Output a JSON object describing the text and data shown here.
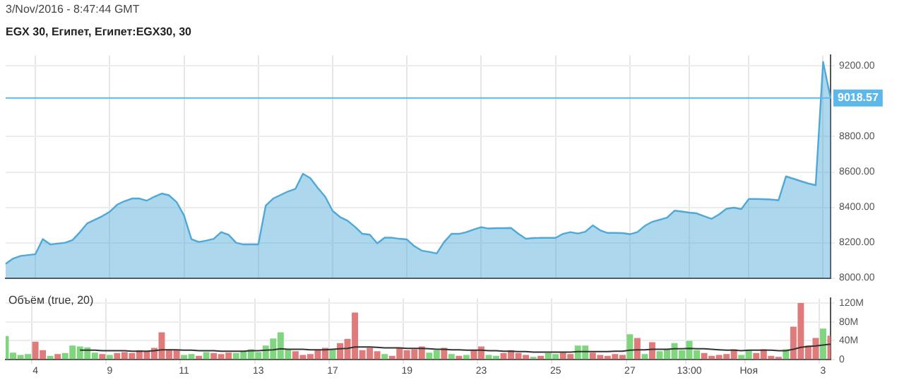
{
  "chart_data": [
    {
      "type": "area",
      "title": "EGX 30, Египет, Египет:EGX30, 30",
      "annotations": [
        "3/Nov/2016 - 8:47:44 GMT"
      ],
      "categories": [
        null,
        null,
        null,
        null,
        null,
        null,
        null,
        null,
        null,
        null,
        null,
        null,
        null,
        null,
        null,
        null,
        null,
        null,
        null,
        null,
        null,
        null,
        null,
        null,
        null,
        null,
        null,
        null,
        null,
        null,
        null,
        null,
        null,
        null,
        null,
        null,
        null,
        null,
        null,
        null,
        null,
        null,
        null,
        null,
        null,
        null,
        null,
        null,
        null,
        null,
        null,
        null,
        null,
        null,
        null,
        null,
        null,
        null,
        null,
        null,
        null,
        null,
        null,
        null,
        null,
        null,
        null,
        null,
        null,
        null,
        null,
        null,
        null,
        null,
        null,
        null,
        null,
        null,
        null,
        null,
        null,
        null,
        null,
        null,
        null,
        null,
        null,
        null,
        null,
        null,
        null,
        null,
        null,
        null,
        null,
        null,
        null,
        null,
        null,
        null,
        null,
        null,
        null,
        null,
        null,
        null,
        null,
        null,
        null,
        null,
        null,
        null
      ],
      "series": [
        {
          "color": "#4fa9d8",
          "values": [
            8080,
            8110,
            8125,
            8130,
            8135,
            8220,
            8190,
            8195,
            8200,
            8215,
            8260,
            8310,
            8330,
            8350,
            8375,
            8415,
            8435,
            8450,
            8450,
            8438,
            8460,
            8478,
            8468,
            8430,
            8355,
            8220,
            8204,
            8212,
            8222,
            8260,
            8245,
            8200,
            8190,
            8190,
            8190,
            8410,
            8450,
            8470,
            8490,
            8505,
            8590,
            8565,
            8510,
            8460,
            8380,
            8345,
            8325,
            8290,
            8250,
            8245,
            8196,
            8228,
            8228,
            8222,
            8218,
            8180,
            8155,
            8148,
            8139,
            8204,
            8250,
            8250,
            8260,
            8275,
            8288,
            8280,
            8282,
            8282,
            8283,
            8250,
            8222,
            8226,
            8227,
            8227,
            8227,
            8250,
            8260,
            8252,
            8262,
            8298,
            8270,
            8255,
            8255,
            8254,
            8248,
            8260,
            8295,
            8318,
            8330,
            8342,
            8381,
            8376,
            8370,
            8366,
            8350,
            8335,
            8360,
            8392,
            8398,
            8390,
            8447,
            8447,
            8446,
            8444,
            8440,
            8575,
            8562,
            8548,
            8535,
            8525,
            9223,
            9018.57
          ]
        }
      ],
      "ylim": [
        8000,
        9260
      ],
      "yticks": [
        {
          "value": 8000,
          "label": "8000.00"
        },
        {
          "value": 8200,
          "label": "8200.00"
        },
        {
          "value": 8400,
          "label": "8400.00"
        },
        {
          "value": 8600,
          "label": "8600.00"
        },
        {
          "value": 8800,
          "label": "8800.00"
        },
        {
          "value": 9200,
          "label": "9200.00"
        }
      ],
      "ref_lines": [
        {
          "axis": "y",
          "value": 9018.57,
          "label": "9018.57",
          "color": "#5bb8e8"
        }
      ],
      "grid": true,
      "tick_labels": "y"
    },
    {
      "type": "bar",
      "title": "Объём (true, 20)",
      "categories": [
        null,
        null,
        null,
        null,
        "4",
        null,
        null,
        null,
        null,
        null,
        null,
        null,
        null,
        null,
        "9",
        null,
        null,
        null,
        null,
        null,
        null,
        null,
        null,
        null,
        "11",
        null,
        null,
        null,
        null,
        null,
        null,
        null,
        null,
        null,
        "13",
        null,
        null,
        null,
        null,
        null,
        null,
        null,
        null,
        null,
        "17",
        null,
        null,
        null,
        null,
        null,
        null,
        null,
        null,
        null,
        "19",
        null,
        null,
        null,
        null,
        null,
        null,
        null,
        null,
        null,
        "23",
        null,
        null,
        null,
        null,
        null,
        null,
        null,
        null,
        null,
        "25",
        null,
        null,
        null,
        null,
        null,
        null,
        null,
        null,
        null,
        "27",
        null,
        null,
        null,
        null,
        null,
        null,
        null,
        "13:00",
        null,
        null,
        null,
        null,
        null,
        null,
        null,
        "Ноя",
        null,
        null,
        null,
        null,
        null,
        null,
        null,
        null,
        null,
        "3",
        null
      ],
      "series": [
        {
          "values": [
            50,
            15,
            10,
            12,
            38,
            20,
            8,
            12,
            14,
            30,
            28,
            26,
            15,
            12,
            10,
            14,
            16,
            14,
            20,
            18,
            25,
            58,
            22,
            20,
            10,
            12,
            8,
            16,
            14,
            12,
            15,
            14,
            18,
            22,
            16,
            30,
            45,
            58,
            22,
            18,
            10,
            12,
            20,
            25,
            22,
            35,
            44,
            100,
            20,
            25,
            18,
            12,
            8,
            25,
            20,
            22,
            28,
            15,
            20,
            25,
            12,
            8,
            10,
            20,
            28,
            10,
            8,
            14,
            20,
            14,
            10,
            6,
            8,
            14,
            12,
            15,
            12,
            30,
            30,
            15,
            10,
            8,
            12,
            10,
            54,
            46,
            12,
            37,
            18,
            22,
            35,
            20,
            40,
            20,
            14,
            8,
            10,
            12,
            22,
            10,
            20,
            14,
            22,
            8,
            6,
            22,
            70,
            120,
            30,
            46,
            66,
            51
          ],
          "colors": [
            "#7fd67f",
            "#7fd67f",
            "#7fd67f",
            "#7fd67f",
            "#e07b7b",
            "#e07b7b",
            "#7fd67f",
            "#e07b7b",
            "#7fd67f",
            "#7fd67f",
            "#7fd67f",
            "#7fd67f",
            "#7fd67f",
            "#e07b7b",
            "#7fd67f",
            "#e07b7b",
            "#e07b7b",
            "#e07b7b",
            "#e07b7b",
            "#e07b7b",
            "#e07b7b",
            "#e07b7b",
            "#e07b7b",
            "#e07b7b",
            "#7fd67f",
            "#7fd67f",
            "#e07b7b",
            "#7fd67f",
            "#e07b7b",
            "#e07b7b",
            "#e07b7b",
            "#7fd67f",
            "#7fd67f",
            "#7fd67f",
            "#7fd67f",
            "#7fd67f",
            "#7fd67f",
            "#7fd67f",
            "#7fd67f",
            "#e07b7b",
            "#e07b7b",
            "#e07b7b",
            "#e07b7b",
            "#e07b7b",
            "#7fd67f",
            "#e07b7b",
            "#e07b7b",
            "#e07b7b",
            "#e07b7b",
            "#e07b7b",
            "#e07b7b",
            "#7fd67f",
            "#e07b7b",
            "#e07b7b",
            "#e07b7b",
            "#e07b7b",
            "#e07b7b",
            "#7fd67f",
            "#7fd67f",
            "#e07b7b",
            "#7fd67f",
            "#e07b7b",
            "#7fd67f",
            "#e07b7b",
            "#e07b7b",
            "#7fd67f",
            "#7fd67f",
            "#e07b7b",
            "#e07b7b",
            "#e07b7b",
            "#e07b7b",
            "#7fd67f",
            "#e07b7b",
            "#7fd67f",
            "#7fd67f",
            "#e07b7b",
            "#e07b7b",
            "#7fd67f",
            "#7fd67f",
            "#e07b7b",
            "#e07b7b",
            "#e07b7b",
            "#e07b7b",
            "#e07b7b",
            "#7fd67f",
            "#e07b7b",
            "#7fd67f",
            "#e07b7b",
            "#7fd67f",
            "#7fd67f",
            "#7fd67f",
            "#7fd67f",
            "#7fd67f",
            "#7fd67f",
            "#e07b7b",
            "#e07b7b",
            "#e07b7b",
            "#e07b7b",
            "#e07b7b",
            "#7fd67f",
            "#7fd67f",
            "#e07b7b",
            "#e07b7b",
            "#e07b7b",
            "#e07b7b",
            "#7fd67f",
            "#e07b7b",
            "#e07b7b",
            "#e07b7b",
            "#e07b7b",
            "#7fd67f",
            "#e07b7b"
          ]
        },
        {
          "type": "line",
          "color": "#333333",
          "values": [
            null,
            null,
            null,
            null,
            null,
            null,
            null,
            null,
            null,
            null,
            20,
            20,
            20,
            19,
            19,
            19,
            19,
            18,
            18,
            18,
            19,
            21,
            21,
            21,
            20,
            20,
            19,
            19,
            19,
            18,
            18,
            18,
            18,
            19,
            19,
            20,
            21,
            23,
            22,
            22,
            22,
            21,
            21,
            21,
            22,
            23,
            24,
            27,
            27,
            27,
            26,
            25,
            25,
            25,
            24,
            24,
            24,
            23,
            22,
            22,
            21,
            21,
            20,
            20,
            20,
            19,
            19,
            18,
            18,
            17,
            17,
            16,
            16,
            16,
            16,
            16,
            16,
            17,
            17,
            17,
            17,
            17,
            18,
            18,
            20,
            21,
            21,
            22,
            22,
            22,
            23,
            23,
            24,
            23,
            23,
            22,
            21,
            20,
            20,
            19,
            20,
            20,
            20,
            20,
            19,
            19,
            22,
            26,
            28,
            29,
            31,
            33
          ]
        }
      ],
      "ylim": [
        0,
        130
      ],
      "yticks": [
        0,
        {
          "value": 40,
          "label": "40M"
        },
        {
          "value": 80,
          "label": "80M"
        },
        {
          "value": 120,
          "label": "120M"
        }
      ],
      "grid": true,
      "marker": "none"
    }
  ]
}
